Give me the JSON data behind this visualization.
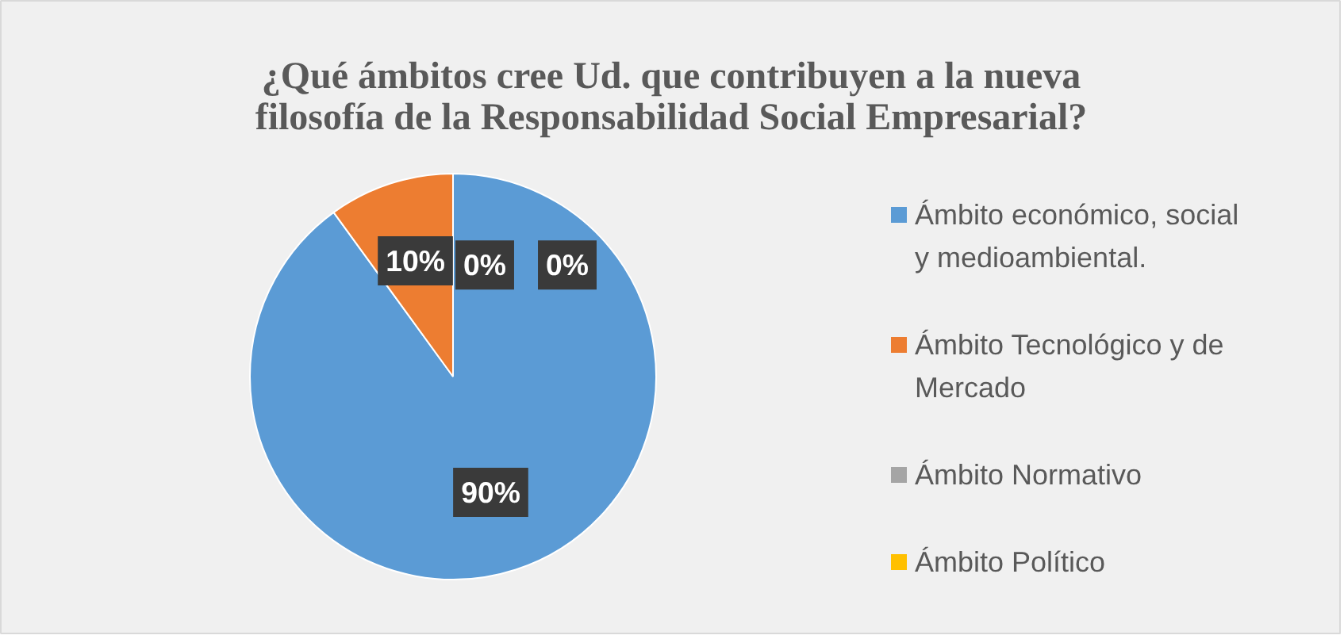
{
  "chart_data": {
    "type": "pie",
    "title": "¿Qué ámbitos cree Ud. que contribuyen a la nueva filosofía de la Responsabilidad Social Empresarial?",
    "categories": [
      "Ámbito  económico, social y medioambiental.",
      "Ámbito Tecnológico y de Mercado",
      "Ámbito Normativo",
      "Ámbito Político"
    ],
    "values": [
      90,
      10,
      0,
      0
    ],
    "colors": [
      "#5b9bd5",
      "#ed7d31",
      "#a5a5a5",
      "#ffc000"
    ],
    "value_labels": [
      "90%",
      "10%",
      "0%",
      "0%"
    ],
    "legend": "right"
  }
}
